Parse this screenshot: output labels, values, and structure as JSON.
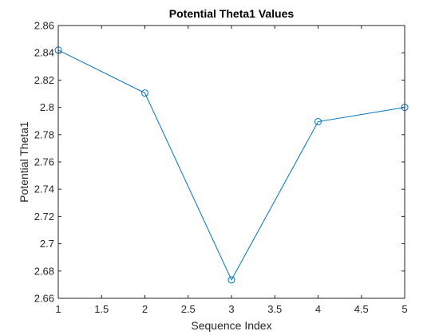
{
  "chart_data": {
    "type": "line",
    "title": "Potential Theta1 Values",
    "xlabel": "Sequence Index",
    "ylabel": "Potential Theta1",
    "xlim": [
      1,
      5
    ],
    "ylim": [
      2.66,
      2.86
    ],
    "x_ticks": [
      "1",
      "1.5",
      "2",
      "2.5",
      "3",
      "3.5",
      "4",
      "4.5",
      "5"
    ],
    "y_ticks": [
      "2.66",
      "2.68",
      "2.7",
      "2.72",
      "2.74",
      "2.76",
      "2.78",
      "2.8",
      "2.82",
      "2.84",
      "2.86"
    ],
    "grid": false,
    "marker": "circle",
    "series": [
      {
        "x": [
          1,
          2,
          3,
          4,
          5
        ],
        "values": [
          2.842,
          2.8105,
          2.6735,
          2.7895,
          2.8
        ]
      }
    ]
  },
  "colors": {
    "line": "#0072BD",
    "axis": "#262626",
    "background": "#ffffff"
  }
}
